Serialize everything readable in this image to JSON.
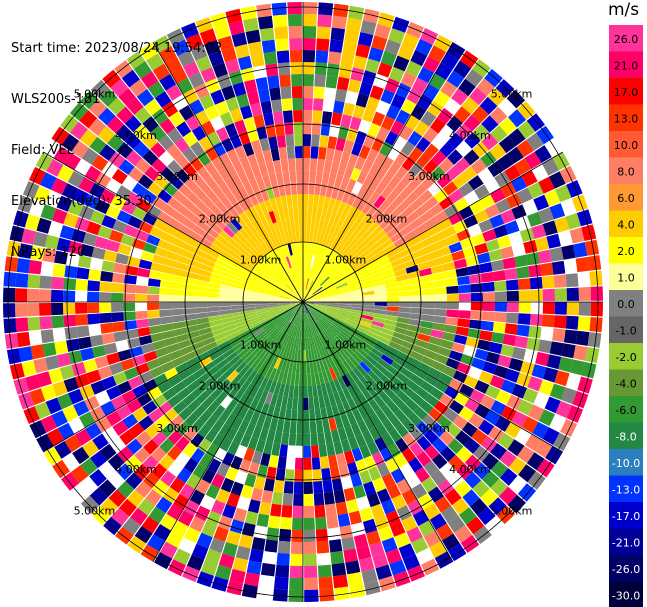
{
  "info": {
    "start_time": "Start time: 2023/08/24 19:54:02",
    "station": "WLS200s-181",
    "field": "Field: VEL",
    "elevation": "Elevation(deg): 35.30",
    "nrays": "NRays: 120"
  },
  "range_rings": [
    "1.00km",
    "2.00km",
    "3.00km",
    "4.00km",
    "5.00km"
  ],
  "colorbar": {
    "unit": "m/s",
    "ticks": [
      "26.0",
      "21.0",
      "17.0",
      "13.0",
      "10.0",
      "8.0",
      "6.0",
      "4.0",
      "2.0",
      "1.0",
      "0.0",
      "-1.0",
      "-2.0",
      "-4.0",
      "-6.0",
      "-8.0",
      "-10.0",
      "-13.0",
      "-17.0",
      "-21.0",
      "-26.0",
      "-30.0"
    ],
    "colors": [
      "#ff3399",
      "#ff0066",
      "#ff0000",
      "#ff3300",
      "#ff5a33",
      "#ff7f66",
      "#ff9933",
      "#ffcc00",
      "#ffff00",
      "#ffff99",
      "#808080",
      "#666666",
      "#99cc33",
      "#669933",
      "#339933",
      "#228844",
      "#2a7fbf",
      "#0033ff",
      "#0000cc",
      "#000099",
      "#000066",
      "#00003a"
    ]
  }
}
